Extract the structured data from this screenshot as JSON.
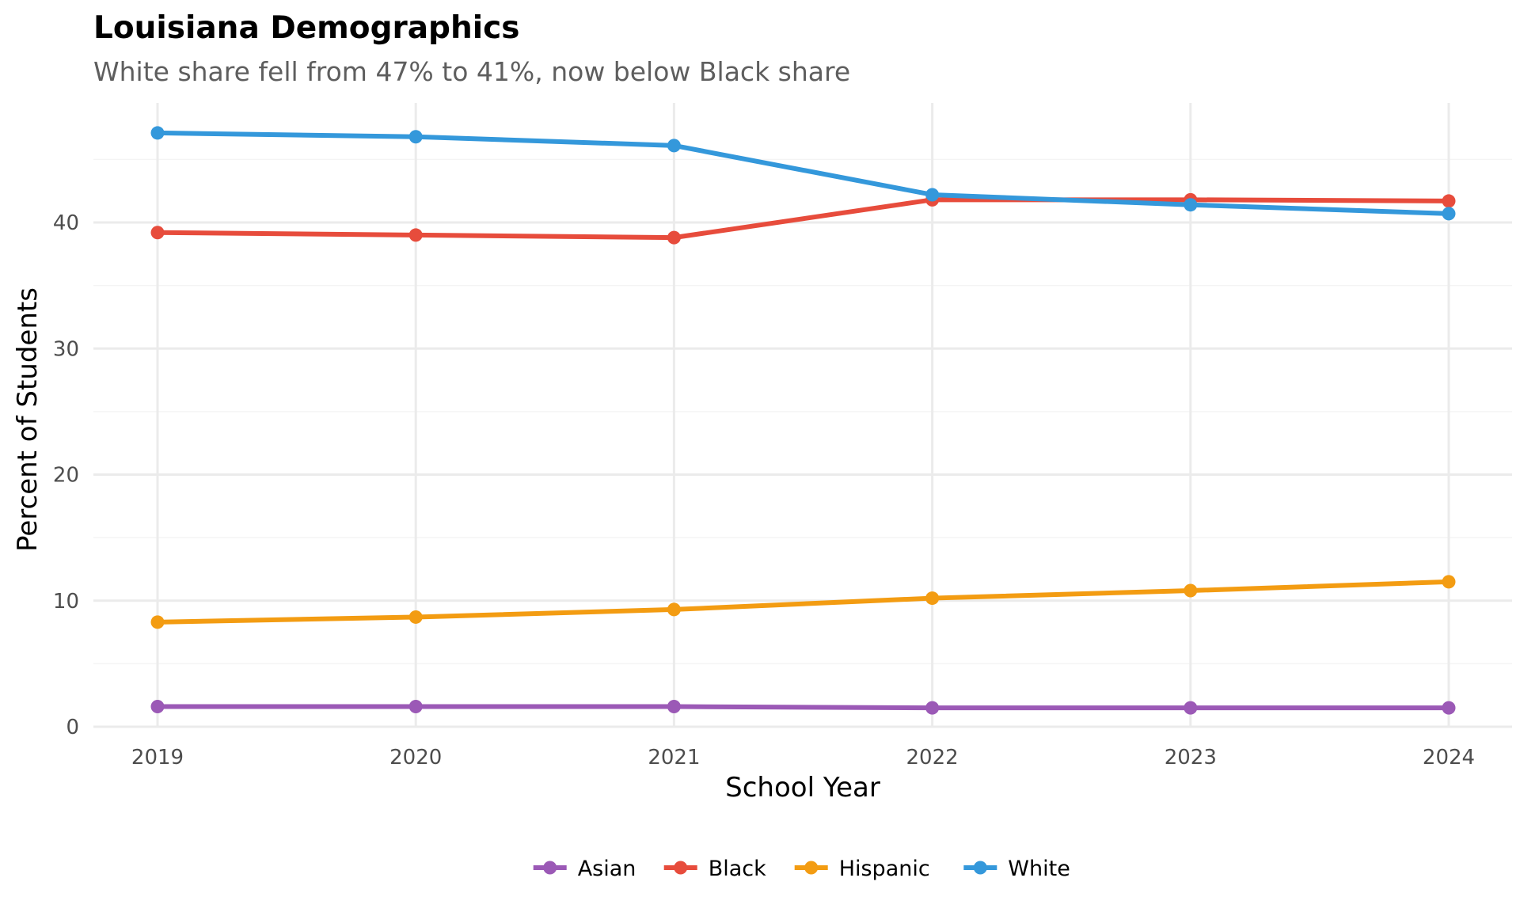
{
  "chart_data": {
    "type": "line",
    "title": "Louisiana Demographics",
    "subtitle": "White share fell from 47% to 41%, now below Black share",
    "xlabel": "School Year",
    "ylabel": "Percent of Students",
    "x": [
      2019,
      2020,
      2021,
      2022,
      2023,
      2024
    ],
    "x_tick_labels": [
      "2019",
      "2020",
      "2021",
      "2022",
      "2023",
      "2024"
    ],
    "xlim": [
      2018.75,
      2024.25
    ],
    "ylim": [
      0,
      50
    ],
    "y_ticks": [
      0,
      10,
      20,
      30,
      40
    ],
    "y_tick_labels": [
      "0",
      "10",
      "20",
      "30",
      "40"
    ],
    "grid": true,
    "legend_position": "bottom",
    "series": [
      {
        "name": "Asian",
        "color": "#9b59b6",
        "values": [
          1.6,
          1.6,
          1.6,
          1.5,
          1.5,
          1.5
        ]
      },
      {
        "name": "Black",
        "color": "#e74c3c",
        "values": [
          39.2,
          39.0,
          38.8,
          41.8,
          41.8,
          41.7
        ]
      },
      {
        "name": "Hispanic",
        "color": "#f39c12",
        "values": [
          8.3,
          8.7,
          9.3,
          10.2,
          10.8,
          11.5
        ]
      },
      {
        "name": "White",
        "color": "#3498db",
        "values": [
          47.1,
          46.8,
          46.1,
          42.2,
          41.4,
          40.7
        ]
      }
    ]
  }
}
